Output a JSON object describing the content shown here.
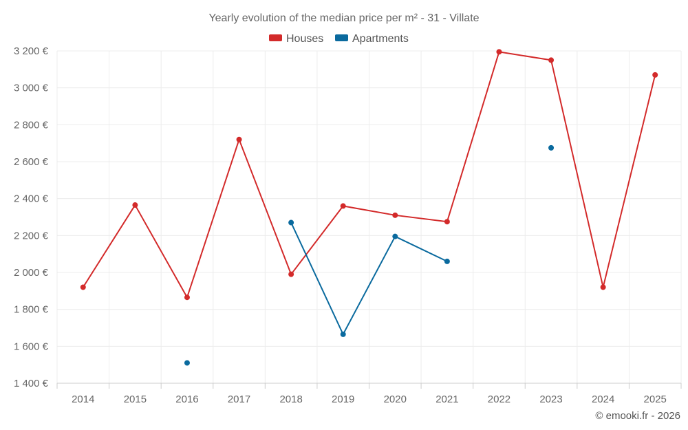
{
  "chart_data": {
    "type": "line",
    "title": "Yearly evolution of the median price per m² - 31 - Villate",
    "categories": [
      "2014",
      "2015",
      "2016",
      "2017",
      "2018",
      "2019",
      "2020",
      "2021",
      "2022",
      "2023",
      "2024",
      "2025"
    ],
    "ylim": [
      1400,
      3200
    ],
    "y_ticks": [
      1400,
      1600,
      1800,
      2000,
      2200,
      2400,
      2600,
      2800,
      3000,
      3200
    ],
    "y_tick_labels": [
      "1 400 €",
      "1 600 €",
      "1 800 €",
      "2 000 €",
      "2 200 €",
      "2 400 €",
      "2 600 €",
      "2 800 €",
      "3 000 €",
      "3 200 €"
    ],
    "grid": true,
    "legend_position": "top-center",
    "series": [
      {
        "name": "Houses",
        "color": "#d32a2a",
        "values": [
          1920,
          2365,
          1865,
          2720,
          1990,
          2360,
          2310,
          2275,
          3195,
          3150,
          1920,
          3070
        ]
      },
      {
        "name": "Apartments",
        "color": "#0a6a9e",
        "values": [
          null,
          null,
          1510,
          null,
          2270,
          1665,
          2195,
          2060,
          null,
          2675,
          null,
          null
        ]
      }
    ]
  },
  "credit": "© emooki.fr - 2026"
}
